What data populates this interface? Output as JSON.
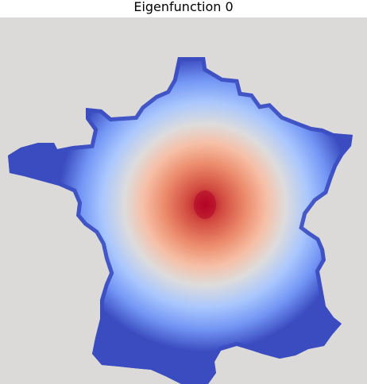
{
  "chart_data": {
    "type": "heatmap",
    "title": "Eigenfunction 0",
    "xlabel": "",
    "ylabel": "",
    "colormap": "coolwarm",
    "grid": false,
    "legend": "none",
    "peak_value": 1.0,
    "boundary_value": 0.0,
    "colors": {
      "background": "#dcdad9",
      "high": "#b40426",
      "mid": "#dddcdc",
      "low": "#3b4cc0"
    }
  }
}
